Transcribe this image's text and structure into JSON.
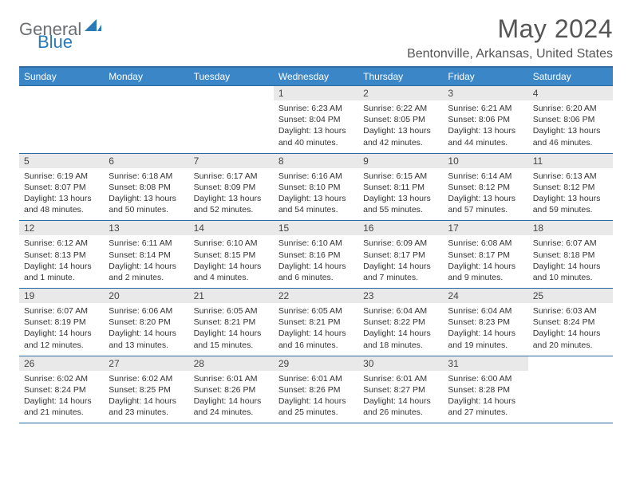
{
  "logo": {
    "text1": "General",
    "text2": "Blue"
  },
  "title": "May 2024",
  "location": "Bentonville, Arkansas, United States",
  "colors": {
    "header_bg": "#3b86c7",
    "header_border": "#2a6aa0",
    "daynum_bg": "#e9e9e9",
    "logo_gray": "#6b6f73",
    "logo_blue": "#2a7ab8"
  },
  "weekdays": [
    "Sunday",
    "Monday",
    "Tuesday",
    "Wednesday",
    "Thursday",
    "Friday",
    "Saturday"
  ],
  "weeks": [
    {
      "nums": [
        "",
        "",
        "",
        "1",
        "2",
        "3",
        "4"
      ],
      "cells": [
        "",
        "",
        "",
        "Sunrise: 6:23 AM\nSunset: 8:04 PM\nDaylight: 13 hours and 40 minutes.",
        "Sunrise: 6:22 AM\nSunset: 8:05 PM\nDaylight: 13 hours and 42 minutes.",
        "Sunrise: 6:21 AM\nSunset: 8:06 PM\nDaylight: 13 hours and 44 minutes.",
        "Sunrise: 6:20 AM\nSunset: 8:06 PM\nDaylight: 13 hours and 46 minutes."
      ]
    },
    {
      "nums": [
        "5",
        "6",
        "7",
        "8",
        "9",
        "10",
        "11"
      ],
      "cells": [
        "Sunrise: 6:19 AM\nSunset: 8:07 PM\nDaylight: 13 hours and 48 minutes.",
        "Sunrise: 6:18 AM\nSunset: 8:08 PM\nDaylight: 13 hours and 50 minutes.",
        "Sunrise: 6:17 AM\nSunset: 8:09 PM\nDaylight: 13 hours and 52 minutes.",
        "Sunrise: 6:16 AM\nSunset: 8:10 PM\nDaylight: 13 hours and 54 minutes.",
        "Sunrise: 6:15 AM\nSunset: 8:11 PM\nDaylight: 13 hours and 55 minutes.",
        "Sunrise: 6:14 AM\nSunset: 8:12 PM\nDaylight: 13 hours and 57 minutes.",
        "Sunrise: 6:13 AM\nSunset: 8:12 PM\nDaylight: 13 hours and 59 minutes."
      ]
    },
    {
      "nums": [
        "12",
        "13",
        "14",
        "15",
        "16",
        "17",
        "18"
      ],
      "cells": [
        "Sunrise: 6:12 AM\nSunset: 8:13 PM\nDaylight: 14 hours and 1 minute.",
        "Sunrise: 6:11 AM\nSunset: 8:14 PM\nDaylight: 14 hours and 2 minutes.",
        "Sunrise: 6:10 AM\nSunset: 8:15 PM\nDaylight: 14 hours and 4 minutes.",
        "Sunrise: 6:10 AM\nSunset: 8:16 PM\nDaylight: 14 hours and 6 minutes.",
        "Sunrise: 6:09 AM\nSunset: 8:17 PM\nDaylight: 14 hours and 7 minutes.",
        "Sunrise: 6:08 AM\nSunset: 8:17 PM\nDaylight: 14 hours and 9 minutes.",
        "Sunrise: 6:07 AM\nSunset: 8:18 PM\nDaylight: 14 hours and 10 minutes."
      ]
    },
    {
      "nums": [
        "19",
        "20",
        "21",
        "22",
        "23",
        "24",
        "25"
      ],
      "cells": [
        "Sunrise: 6:07 AM\nSunset: 8:19 PM\nDaylight: 14 hours and 12 minutes.",
        "Sunrise: 6:06 AM\nSunset: 8:20 PM\nDaylight: 14 hours and 13 minutes.",
        "Sunrise: 6:05 AM\nSunset: 8:21 PM\nDaylight: 14 hours and 15 minutes.",
        "Sunrise: 6:05 AM\nSunset: 8:21 PM\nDaylight: 14 hours and 16 minutes.",
        "Sunrise: 6:04 AM\nSunset: 8:22 PM\nDaylight: 14 hours and 18 minutes.",
        "Sunrise: 6:04 AM\nSunset: 8:23 PM\nDaylight: 14 hours and 19 minutes.",
        "Sunrise: 6:03 AM\nSunset: 8:24 PM\nDaylight: 14 hours and 20 minutes."
      ]
    },
    {
      "nums": [
        "26",
        "27",
        "28",
        "29",
        "30",
        "31",
        ""
      ],
      "cells": [
        "Sunrise: 6:02 AM\nSunset: 8:24 PM\nDaylight: 14 hours and 21 minutes.",
        "Sunrise: 6:02 AM\nSunset: 8:25 PM\nDaylight: 14 hours and 23 minutes.",
        "Sunrise: 6:01 AM\nSunset: 8:26 PM\nDaylight: 14 hours and 24 minutes.",
        "Sunrise: 6:01 AM\nSunset: 8:26 PM\nDaylight: 14 hours and 25 minutes.",
        "Sunrise: 6:01 AM\nSunset: 8:27 PM\nDaylight: 14 hours and 26 minutes.",
        "Sunrise: 6:00 AM\nSunset: 8:28 PM\nDaylight: 14 hours and 27 minutes.",
        ""
      ]
    }
  ]
}
